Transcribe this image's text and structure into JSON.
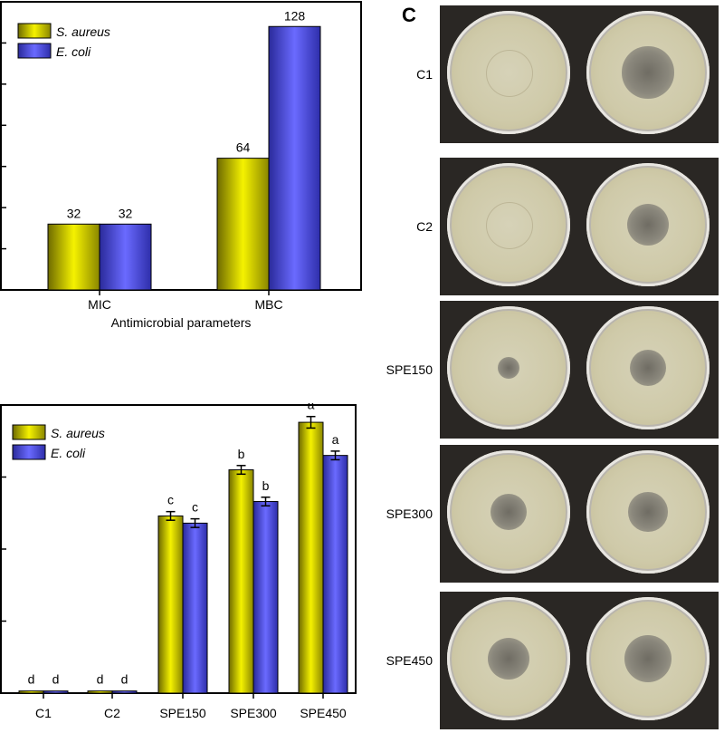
{
  "chart_data": [
    {
      "type": "bar",
      "xlabel": "Antimicrobial parameters",
      "categories": [
        "MIC",
        "MBC"
      ],
      "series": [
        {
          "name": "S. aureus",
          "values": [
            32,
            64
          ],
          "labels": [
            "32",
            "64"
          ],
          "color": "#e8e600"
        },
        {
          "name": "E. coli",
          "values": [
            32,
            128
          ],
          "labels": [
            "32",
            "128"
          ],
          "color": "#4848f0"
        }
      ],
      "ylim": [
        0,
        140
      ],
      "grid": false,
      "legend": "top-left"
    },
    {
      "type": "bar",
      "categories": [
        "C1",
        "C2",
        "SPE150",
        "SPE300",
        "SPE450"
      ],
      "series": [
        {
          "name": "S. aureus",
          "values": [
            0.15,
            0.15,
            12.3,
            15.5,
            18.8
          ],
          "errors": [
            0,
            0,
            0.3,
            0.3,
            0.4
          ],
          "letters": [
            "d",
            "d",
            "c",
            "b",
            "a"
          ],
          "color": "#e8e600"
        },
        {
          "name": "E. coli",
          "values": [
            0.15,
            0.15,
            11.8,
            13.3,
            16.5
          ],
          "errors": [
            0,
            0,
            0.3,
            0.3,
            0.3
          ],
          "letters": [
            "d",
            "d",
            "c",
            "b",
            "a"
          ],
          "color": "#4848f0"
        }
      ],
      "ylim": [
        0,
        20
      ],
      "grid": false,
      "legend": "top-left"
    }
  ],
  "photo_panel": {
    "letter": "C",
    "rows": [
      {
        "label": "C1",
        "zones": [
          0,
          0.42
        ]
      },
      {
        "label": "C2",
        "zones": [
          0,
          0.34
        ]
      },
      {
        "label": "SPE150",
        "zones": [
          0.18,
          0.3
        ]
      },
      {
        "label": "SPE300",
        "zones": [
          0.3,
          0.32
        ]
      },
      {
        "label": "SPE450",
        "zones": [
          0.34,
          0.38
        ]
      }
    ]
  }
}
